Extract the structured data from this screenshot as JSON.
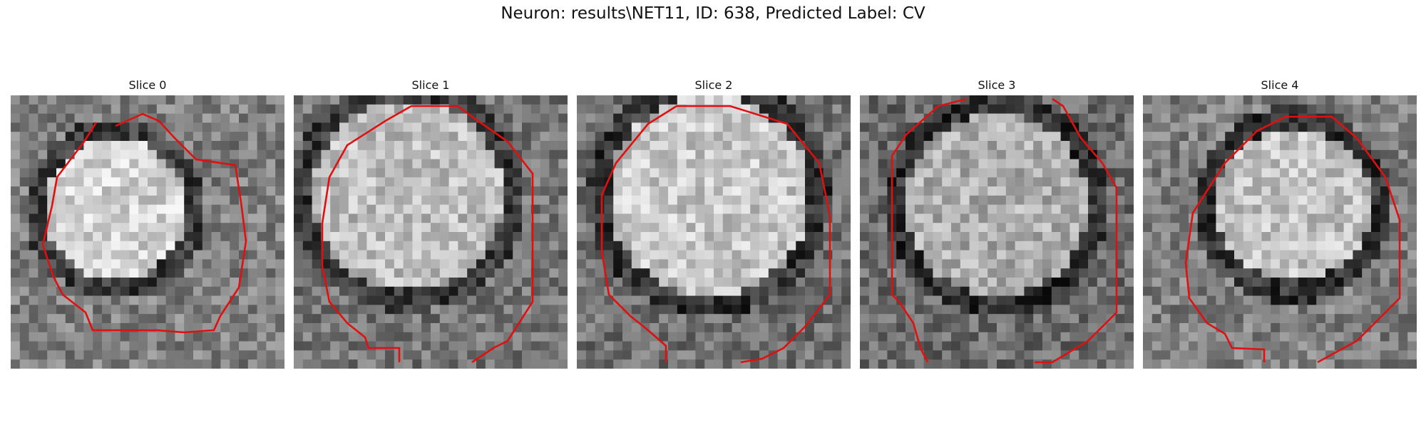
{
  "figure": {
    "title": "Neuron: results\\NET11, ID: 638, Predicted Label: CV"
  },
  "colors": {
    "contour": "#e01010"
  },
  "panels": [
    {
      "title": "Slice 0",
      "image": {
        "description_kind": "grayscale microscopy crop, 30x30 pixels",
        "content": "bright round cell body surrounded by a dark ring"
      }
    },
    {
      "title": "Slice 1",
      "image": {
        "description_kind": "grayscale microscopy crop, 30x30 pixels",
        "content": "bright round cell body"
      }
    },
    {
      "title": "Slice 2",
      "image": {
        "description_kind": "grayscale microscopy crop, 30x30 pixels",
        "content": "bright round cell body"
      }
    },
    {
      "title": "Slice 3",
      "image": {
        "description_kind": "grayscale microscopy crop, 30x30 pixels",
        "content": "dimmer round cell body"
      }
    },
    {
      "title": "Slice 4",
      "image": {
        "description_kind": "grayscale microscopy crop, 30x30 pixels",
        "content": "bright round cell body offset to the right"
      }
    }
  ]
}
